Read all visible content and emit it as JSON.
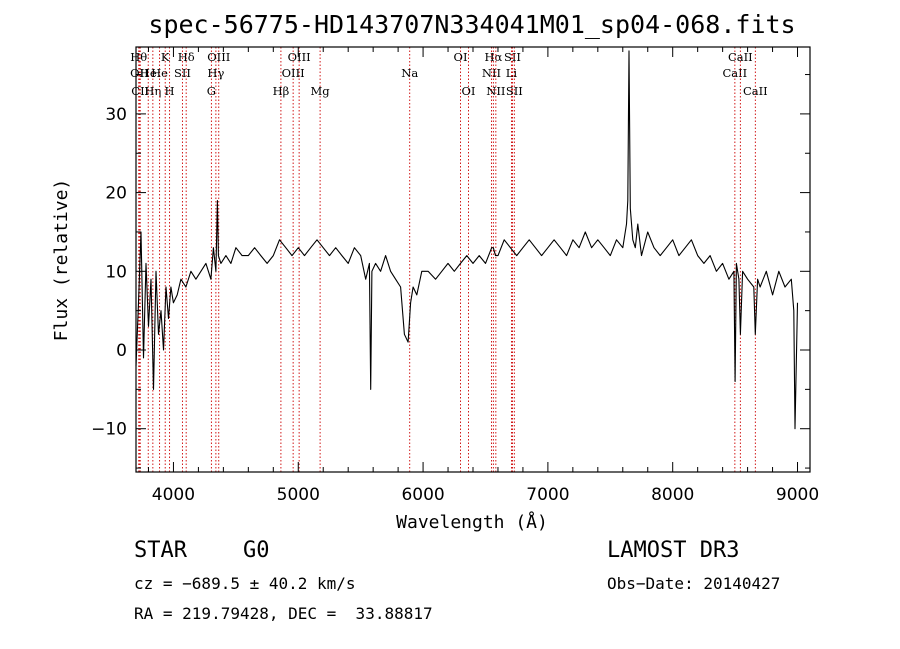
{
  "chart_data": {
    "type": "line",
    "title": "spec-56775-HD143707N334041M01_sp04-068.fits",
    "xlabel": "Wavelength (Å)",
    "ylabel": "Flux (relative)",
    "xlim": [
      3700,
      9100
    ],
    "ylim": [
      -15.5,
      38.5
    ],
    "xticks": [
      4000,
      5000,
      6000,
      7000,
      8000,
      9000
    ],
    "xtick_labels": [
      "4000",
      "5000",
      "6000",
      "7000",
      "8000",
      "9000"
    ],
    "yticks": [
      -10,
      0,
      10,
      20,
      30
    ],
    "ytick_labels": [
      "−10",
      "0",
      "10",
      "20",
      "30"
    ],
    "grid": false,
    "series": [
      {
        "name": "flux",
        "x": [
          3700,
          3720,
          3740,
          3760,
          3780,
          3800,
          3820,
          3840,
          3860,
          3880,
          3900,
          3920,
          3940,
          3960,
          3980,
          4000,
          4030,
          4060,
          4100,
          4140,
          4180,
          4220,
          4260,
          4300,
          4320,
          4340,
          4352,
          4360,
          4380,
          4420,
          4460,
          4500,
          4550,
          4600,
          4650,
          4700,
          4750,
          4800,
          4850,
          4900,
          4950,
          5000,
          5050,
          5100,
          5150,
          5200,
          5250,
          5300,
          5350,
          5400,
          5450,
          5500,
          5540,
          5570,
          5580,
          5590,
          5620,
          5660,
          5700,
          5740,
          5780,
          5820,
          5850,
          5880,
          5900,
          5920,
          5950,
          5990,
          6040,
          6100,
          6150,
          6200,
          6250,
          6300,
          6350,
          6400,
          6450,
          6500,
          6550,
          6563,
          6580,
          6600,
          6650,
          6700,
          6750,
          6800,
          6850,
          6900,
          6950,
          7000,
          7050,
          7100,
          7150,
          7200,
          7250,
          7300,
          7350,
          7400,
          7450,
          7500,
          7550,
          7600,
          7630,
          7640,
          7650,
          7660,
          7680,
          7700,
          7720,
          7750,
          7800,
          7850,
          7900,
          7950,
          8000,
          8050,
          8100,
          8150,
          8200,
          8250,
          8300,
          8350,
          8400,
          8450,
          8490,
          8500,
          8510,
          8530,
          8542,
          8560,
          8600,
          8650,
          8662,
          8680,
          8700,
          8750,
          8800,
          8850,
          8900,
          8950,
          8970,
          8980,
          9000
        ],
        "y": [
          -2,
          6,
          15,
          -1,
          11,
          3,
          9,
          -5,
          10,
          2,
          5,
          0,
          8,
          4,
          8,
          6,
          7,
          9,
          8,
          10,
          9,
          10,
          11,
          9,
          13,
          10,
          19,
          12,
          11,
          12,
          11,
          13,
          12,
          12,
          13,
          12,
          11,
          12,
          14,
          13,
          12,
          13,
          12,
          13,
          14,
          13,
          12,
          13,
          12,
          11,
          13,
          12,
          9,
          11,
          -5,
          10,
          11,
          10,
          12,
          10,
          9,
          8,
          2,
          1,
          6,
          8,
          7,
          10,
          10,
          9,
          10,
          11,
          10,
          11,
          12,
          11,
          12,
          11,
          13,
          13,
          12,
          12,
          14,
          13,
          12,
          13,
          14,
          13,
          12,
          13,
          14,
          13,
          12,
          14,
          13,
          15,
          13,
          14,
          13,
          12,
          14,
          13,
          16,
          19,
          38,
          18,
          14,
          13,
          16,
          12,
          15,
          13,
          12,
          13,
          14,
          12,
          13,
          14,
          12,
          11,
          12,
          10,
          11,
          9,
          10,
          -4,
          11,
          9,
          2,
          10,
          9,
          8,
          2,
          9,
          8,
          10,
          7,
          10,
          8,
          9,
          5,
          -10,
          6
        ]
      }
    ],
    "lines": [
      {
        "w": 3722,
        "label": "Hθ",
        "row": 1
      },
      {
        "w": 3727,
        "label": "OII",
        "row": 2
      },
      {
        "w": 3734,
        "label": "CII",
        "row": 3
      },
      {
        "w": 3798,
        "label": "He",
        "row": 2
      },
      {
        "w": 3835,
        "label": "Hη",
        "row": 3
      },
      {
        "w": 3889,
        "label": "He",
        "row": 2
      },
      {
        "w": 3934,
        "label": "K",
        "row": 1
      },
      {
        "w": 3969,
        "label": "H",
        "row": 3
      },
      {
        "w": 4072,
        "label": "SII",
        "row": 2
      },
      {
        "w": 4102,
        "label": "Hδ",
        "row": 1
      },
      {
        "w": 4304,
        "label": "G",
        "row": 3
      },
      {
        "w": 4340,
        "label": "Hγ",
        "row": 2
      },
      {
        "w": 4363,
        "label": "OIII",
        "row": 1
      },
      {
        "w": 4861,
        "label": "Hβ",
        "row": 3
      },
      {
        "w": 4959,
        "label": "OIII",
        "row": 2
      },
      {
        "w": 5007,
        "label": "OIII",
        "row": 1
      },
      {
        "w": 5175,
        "label": "Mg",
        "row": 3
      },
      {
        "w": 5893,
        "label": "Na",
        "row": 2
      },
      {
        "w": 6300,
        "label": "OI",
        "row": 1
      },
      {
        "w": 6364,
        "label": "OI",
        "row": 3
      },
      {
        "w": 6548,
        "label": "NII",
        "row": 2
      },
      {
        "w": 6563,
        "label": "Hα",
        "row": 1
      },
      {
        "w": 6583,
        "label": "NII",
        "row": 3
      },
      {
        "w": 6708,
        "label": "Li",
        "row": 2
      },
      {
        "w": 6716,
        "label": "SII",
        "row": 1
      },
      {
        "w": 6731,
        "label": "SII",
        "row": 3
      },
      {
        "w": 8498,
        "label": "CaII",
        "row": 2
      },
      {
        "w": 8542,
        "label": "CaII",
        "row": 1
      },
      {
        "w": 8662,
        "label": "CaII",
        "row": 3
      }
    ]
  },
  "info": {
    "class": "STAR",
    "subclass": "G0",
    "survey": "LAMOST DR3",
    "cz": "cz = −689.5 ± 40.2 km/s",
    "obs_date": "Obs−Date: 20140427",
    "radec": "RA = 219.79428, DEC =  33.88817"
  },
  "colors": {
    "line_marker": "#cc0000",
    "spectrum": "#000000",
    "frame": "#000000"
  }
}
